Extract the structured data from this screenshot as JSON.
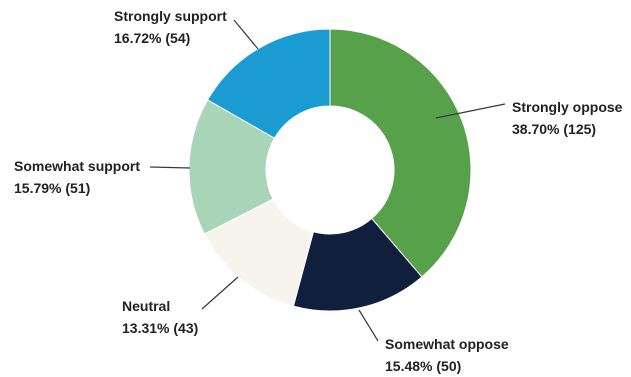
{
  "chart_data": {
    "type": "pie",
    "style": "donut",
    "start_angle_deg": 0,
    "direction": "clockwise",
    "slices": [
      {
        "label": "Strongly oppose",
        "percent": 38.7,
        "count": 125,
        "value_text": "38.70% (125)",
        "color": "#56A14A"
      },
      {
        "label": "Somewhat oppose",
        "percent": 15.48,
        "count": 50,
        "value_text": "15.48% (50)",
        "color": "#0F1F3C"
      },
      {
        "label": "Neutral",
        "percent": 13.31,
        "count": 43,
        "value_text": "13.31% (43)",
        "color": "#F6F4EC"
      },
      {
        "label": "Somewhat support",
        "percent": 15.79,
        "count": 51,
        "value_text": "15.79% (51)",
        "color": "#A8D5B8"
      },
      {
        "label": "Strongly support",
        "percent": 16.72,
        "count": 54,
        "value_text": "16.72% (54)",
        "color": "#1A9CD2"
      }
    ]
  }
}
